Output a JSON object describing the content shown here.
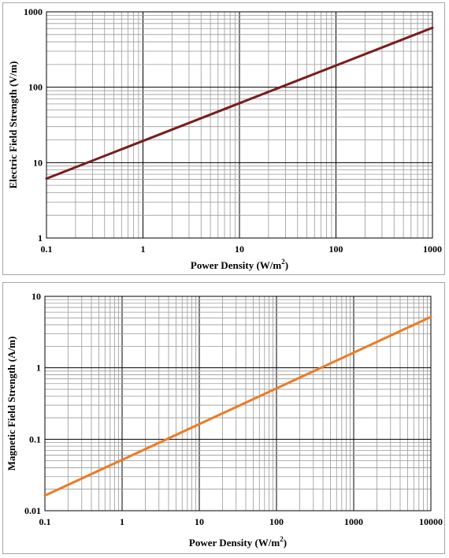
{
  "chart_data": [
    {
      "type": "line",
      "xlabel": "Power Density (W/m",
      "xlabel_sup": "2",
      "xlabel_suffix": ")",
      "ylabel": "Electric Field Strength (V/m)",
      "x_scale": "log",
      "y_scale": "log",
      "xlim": [
        0.1,
        1000
      ],
      "ylim": [
        1,
        1000
      ],
      "x_ticks": [
        "0.1",
        "1",
        "10",
        "100",
        "1000"
      ],
      "y_ticks": [
        "1",
        "10",
        "100",
        "1000"
      ],
      "grid": true,
      "line_color": "#7b1c1c",
      "series": [
        {
          "x": [
            0.1,
            1,
            10,
            100,
            1000
          ],
          "values": [
            6.14,
            19.4,
            61.4,
            194.2,
            614
          ]
        }
      ]
    },
    {
      "type": "line",
      "xlabel": "Power Density (W/m",
      "xlabel_sup": "2",
      "xlabel_suffix": ")",
      "ylabel": "Magnetic Field Strength (A/m)",
      "x_scale": "log",
      "y_scale": "log",
      "xlim": [
        0.1,
        10000
      ],
      "ylim": [
        0.01,
        10
      ],
      "x_ticks": [
        "0.1",
        "1",
        "10",
        "100",
        "1000",
        "10000"
      ],
      "y_ticks": [
        "0.01",
        "0.1",
        "1",
        "10"
      ],
      "grid": true,
      "line_color": "#f07a22",
      "series": [
        {
          "x": [
            0.1,
            1,
            10,
            100,
            1000,
            10000
          ],
          "values": [
            0.0163,
            0.0515,
            0.163,
            0.515,
            1.63,
            5.15
          ]
        }
      ]
    }
  ]
}
